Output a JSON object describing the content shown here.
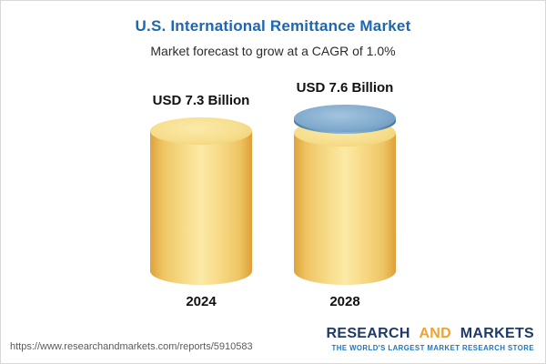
{
  "header": {
    "title": "U.S. International Remittance Market",
    "subtitle": "Market forecast to grow at a CAGR of 1.0%"
  },
  "chart_data": {
    "type": "bar",
    "bar_style": "cylinder",
    "categories": [
      "2024",
      "2028"
    ],
    "values": [
      7.3,
      7.6
    ],
    "value_labels": [
      "USD 7.3 Billion",
      "USD 7.6 Billion"
    ],
    "unit": "USD Billion",
    "title": "U.S. International Remittance Market",
    "subtitle": "Market forecast to grow at a CAGR of 1.0%",
    "cagr": "1.0%",
    "legend": "none",
    "grid": false,
    "colors": {
      "bar": "#F6DD8B",
      "growth_cap": "#6F9FC6"
    }
  },
  "footer": {
    "url": "https://www.researchandmarkets.com/reports/5910583",
    "logo": {
      "word1": "RESEARCH",
      "word2": "AND",
      "word3": "MARKETS",
      "tagline": "THE WORLD'S LARGEST MARKET RESEARCH STORE"
    }
  }
}
